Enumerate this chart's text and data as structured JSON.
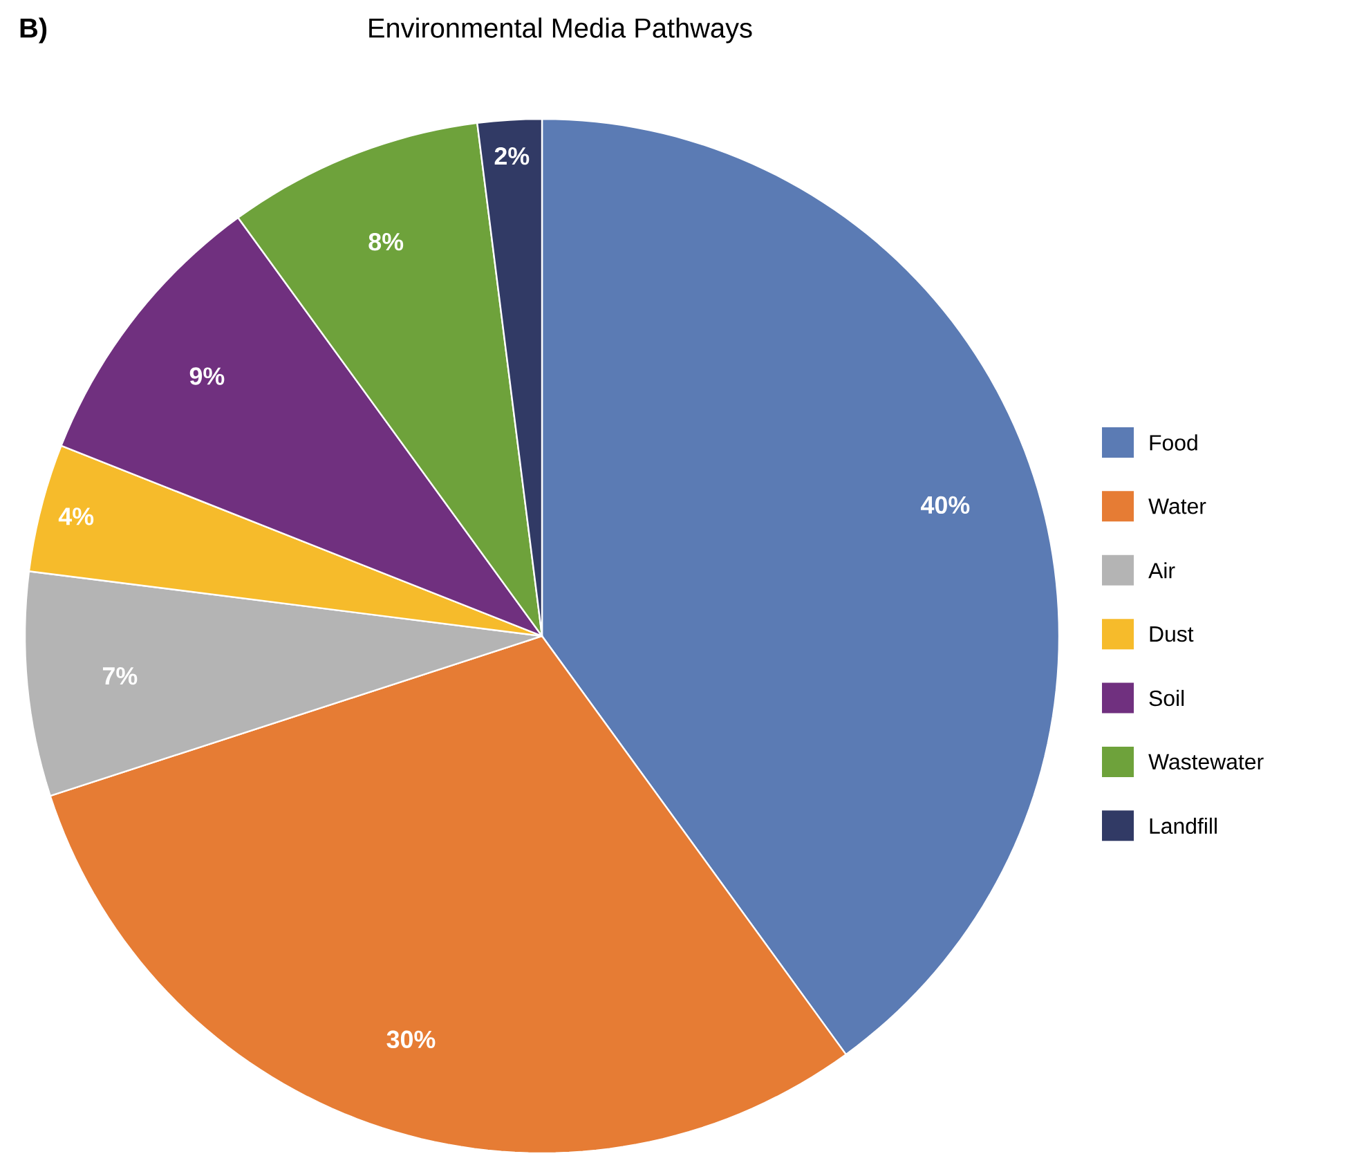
{
  "chart_data": {
    "type": "pie",
    "title": "Environmental Media Pathways",
    "annotations": [
      "B)"
    ],
    "categories": [
      "Food",
      "Water",
      "Air",
      "Dust",
      "Soil",
      "Wastewater",
      "Landfill"
    ],
    "values": [
      40,
      30,
      7,
      4,
      9,
      8,
      2
    ],
    "colors": [
      "#5b7bb4",
      "#e67c34",
      "#b4b4b4",
      "#f6bb2b",
      "#70307f",
      "#6ea23b",
      "#313a65"
    ],
    "value_labels": [
      "40%",
      "30%",
      "7%",
      "4%",
      "9%",
      "8%",
      "2%"
    ],
    "legend": "right"
  }
}
